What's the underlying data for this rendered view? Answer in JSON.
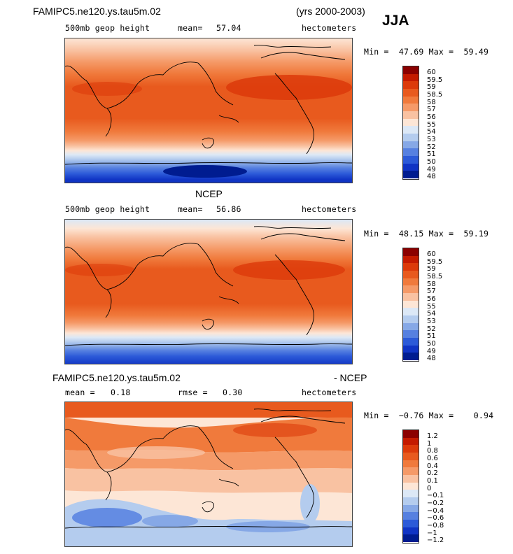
{
  "header": {
    "case_name": "FAMIPC5.ne120.ys.tau5m.02",
    "years": "(yrs 2000-2003)",
    "season": "JJA"
  },
  "panel1": {
    "field": "500mb geop height",
    "mean_label": "mean=",
    "mean_value": "57.04",
    "units": "hectometers",
    "minmax": "Min =  47.69 Max =  59.49",
    "colorbar_labels": [
      "60",
      "59.5",
      "59",
      "58.5",
      "58",
      "57",
      "56",
      "55",
      "54",
      "53",
      "52",
      "51",
      "50",
      "49",
      "48"
    ]
  },
  "panel2": {
    "title": "NCEP",
    "field": "500mb geop height",
    "mean_label": "mean=",
    "mean_value": "56.86",
    "units": "hectometers",
    "minmax": "Min =  48.15 Max =  59.19",
    "colorbar_labels": [
      "60",
      "59.5",
      "59",
      "58.5",
      "58",
      "57",
      "56",
      "55",
      "54",
      "53",
      "52",
      "51",
      "50",
      "49",
      "48"
    ]
  },
  "panel3": {
    "title_left": "FAMIPC5.ne120.ys.tau5m.02",
    "title_right": "- NCEP",
    "mean_label": "mean =",
    "mean_value": "0.18",
    "rmse_label": "rmse =",
    "rmse_value": "0.30",
    "units": "hectometers",
    "minmax": "Min =  −0.76 Max =    0.94",
    "colorbar_labels": [
      "1.2",
      "1",
      "0.8",
      "0.6",
      "0.4",
      "0.2",
      "0.1",
      "0",
      "−0.1",
      "−0.2",
      "−0.4",
      "−0.6",
      "−0.8",
      "−1",
      "−1.2"
    ]
  },
  "colors": {
    "abs_scale": [
      "#8b0000",
      "#c41a00",
      "#dc3a0a",
      "#e85a1e",
      "#f07a3c",
      "#f59a68",
      "#f9c2a2",
      "#fde6d6",
      "#dce8f6",
      "#b4ccee",
      "#86a8e6",
      "#5680e0",
      "#2c5ad8",
      "#1034c4",
      "#001c90"
    ],
    "diff_scale": [
      "#8b0000",
      "#c41a00",
      "#dc3a0a",
      "#e85a1e",
      "#f07a3c",
      "#f59a68",
      "#f9c2a2",
      "#fde6d6",
      "#dce8f6",
      "#b4ccee",
      "#86a8e6",
      "#5680e0",
      "#2c5ad8",
      "#1034c4",
      "#001c90"
    ]
  }
}
